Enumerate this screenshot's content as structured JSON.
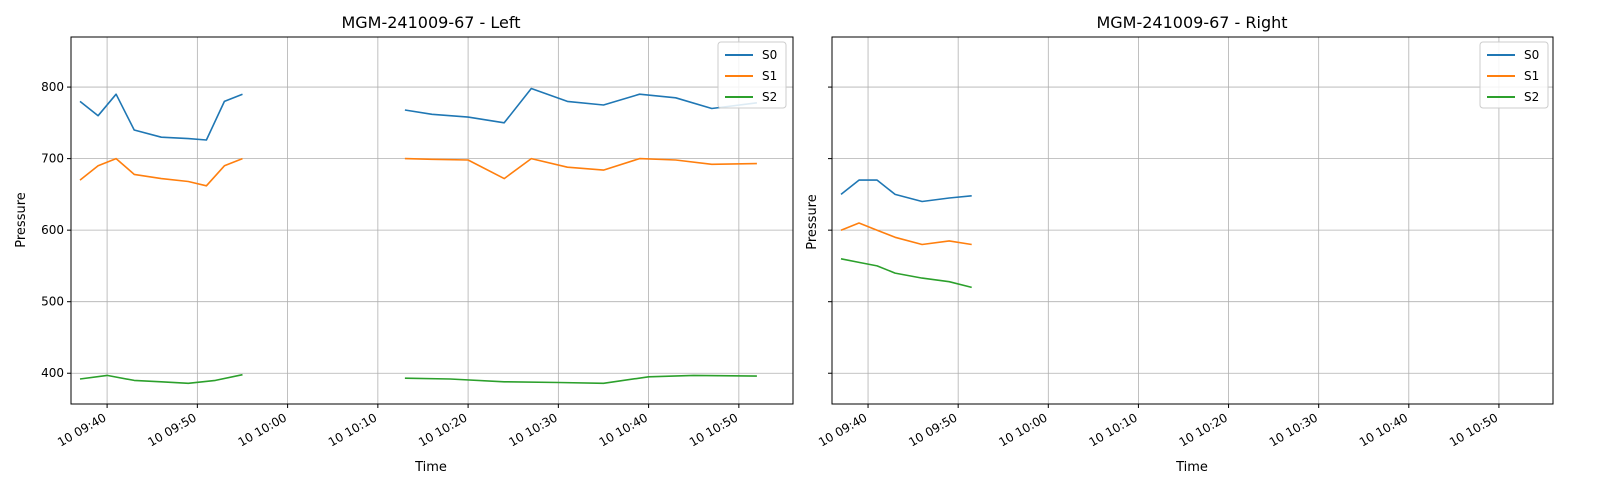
{
  "figure": {
    "background": "#ffffff"
  },
  "chart_data": [
    {
      "type": "line",
      "title": "MGM-241009-67 - Left",
      "xlabel": "Time",
      "ylabel": "Pressure",
      "xlim": [
        "10 09:36",
        "10 10:56"
      ],
      "ylim": [
        357,
        870
      ],
      "grid": true,
      "legend_position": "top-right",
      "xticks": [
        "10 09:40",
        "10 09:50",
        "10 10:00",
        "10 10:10",
        "10 10:20",
        "10 10:30",
        "10 10:40",
        "10 10:50"
      ],
      "yticks": [
        400,
        500,
        600,
        700,
        800
      ],
      "yticklabels": [
        "400",
        "500",
        "600",
        "700",
        "800"
      ],
      "legend": [
        {
          "name": "S0",
          "color": "#1f77b4"
        },
        {
          "name": "S1",
          "color": "#ff7f0e"
        },
        {
          "name": "S2",
          "color": "#2ca02c"
        }
      ],
      "palette": [
        "#1f77b4",
        "#ff7f0e",
        "#2ca02c",
        "#d62728",
        "#9467bd",
        "#8c564b",
        "#e377c2",
        "#7f7f7f",
        "#bcbd22",
        "#17becf"
      ],
      "series": [
        {
          "color": "#1f77b4",
          "x": [
            "10 09:37",
            "10 09:39",
            "10 09:41",
            "10 09:43",
            "10 09:46",
            "10 09:49",
            "10 09:51",
            "10 09:53",
            "10 09:55"
          ],
          "y": [
            780,
            760,
            790,
            740,
            730,
            728,
            726,
            780,
            790
          ]
        },
        {
          "color": "#ff7f0e",
          "x": [
            "10 09:37",
            "10 09:39",
            "10 09:41",
            "10 09:43",
            "10 09:46",
            "10 09:49",
            "10 09:51",
            "10 09:53",
            "10 09:55"
          ],
          "y": [
            670,
            690,
            700,
            678,
            672,
            668,
            662,
            690,
            700
          ]
        },
        {
          "color": "#2ca02c",
          "x": [
            "10 09:37",
            "10 09:40",
            "10 09:43",
            "10 09:46",
            "10 09:49",
            "10 09:52",
            "10 09:55"
          ],
          "y": [
            392,
            397,
            390,
            388,
            386,
            390,
            398
          ]
        },
        {
          "color": "#1f77b4",
          "x": [
            "10 10:13",
            "10 10:16",
            "10 10:20",
            "10 10:24",
            "10 10:27",
            "10 10:31",
            "10 10:35",
            "10 10:39",
            "10 10:43",
            "10 10:47",
            "10 10:52"
          ],
          "y": [
            768,
            762,
            758,
            750,
            798,
            780,
            775,
            790,
            785,
            770,
            778
          ]
        },
        {
          "color": "#ff7f0e",
          "x": [
            "10 10:13",
            "10 10:16",
            "10 10:20",
            "10 10:24",
            "10 10:27",
            "10 10:31",
            "10 10:35",
            "10 10:39",
            "10 10:43",
            "10 10:47",
            "10 10:52"
          ],
          "y": [
            700,
            699,
            698,
            672,
            700,
            688,
            684,
            700,
            698,
            692,
            693
          ]
        },
        {
          "color": "#2ca02c",
          "x": [
            "10 10:13",
            "10 10:18",
            "10 10:24",
            "10 10:30",
            "10 10:35",
            "10 10:40",
            "10 10:45",
            "10 10:52"
          ],
          "y": [
            393,
            392,
            388,
            387,
            386,
            395,
            397,
            396
          ]
        }
      ]
    },
    {
      "type": "line",
      "title": "MGM-241009-67 - Right",
      "xlabel": "Time",
      "ylabel": "Pressure",
      "xlim": [
        "10 09:36",
        "10 10:56"
      ],
      "ylim": [
        357,
        870
      ],
      "grid": true,
      "legend_position": "top-right",
      "xticks": [
        "10 09:40",
        "10 09:50",
        "10 10:00",
        "10 10:10",
        "10 10:20",
        "10 10:30",
        "10 10:40",
        "10 10:50"
      ],
      "yticks": [
        400,
        500,
        600,
        700,
        800
      ],
      "legend": [
        {
          "name": "S0",
          "color": "#1f77b4"
        },
        {
          "name": "S1",
          "color": "#ff7f0e"
        },
        {
          "name": "S2",
          "color": "#2ca02c"
        }
      ],
      "series": [
        {
          "color": "#1f77b4",
          "x": [
            "10 09:37",
            "10 09:39",
            "10 09:41",
            "10 09:43",
            "10 09:46",
            "10 09:49",
            "10 09:51.5"
          ],
          "y": [
            650,
            670,
            670,
            650,
            640,
            645,
            648
          ]
        },
        {
          "color": "#ff7f0e",
          "x": [
            "10 09:37",
            "10 09:39",
            "10 09:41",
            "10 09:43",
            "10 09:46",
            "10 09:49",
            "10 09:51.5"
          ],
          "y": [
            600,
            610,
            600,
            590,
            580,
            585,
            580
          ]
        },
        {
          "color": "#2ca02c",
          "x": [
            "10 09:37",
            "10 09:39",
            "10 09:41",
            "10 09:43",
            "10 09:46",
            "10 09:49",
            "10 09:51.5"
          ],
          "y": [
            560,
            555,
            550,
            540,
            533,
            528,
            520
          ]
        }
      ]
    }
  ]
}
